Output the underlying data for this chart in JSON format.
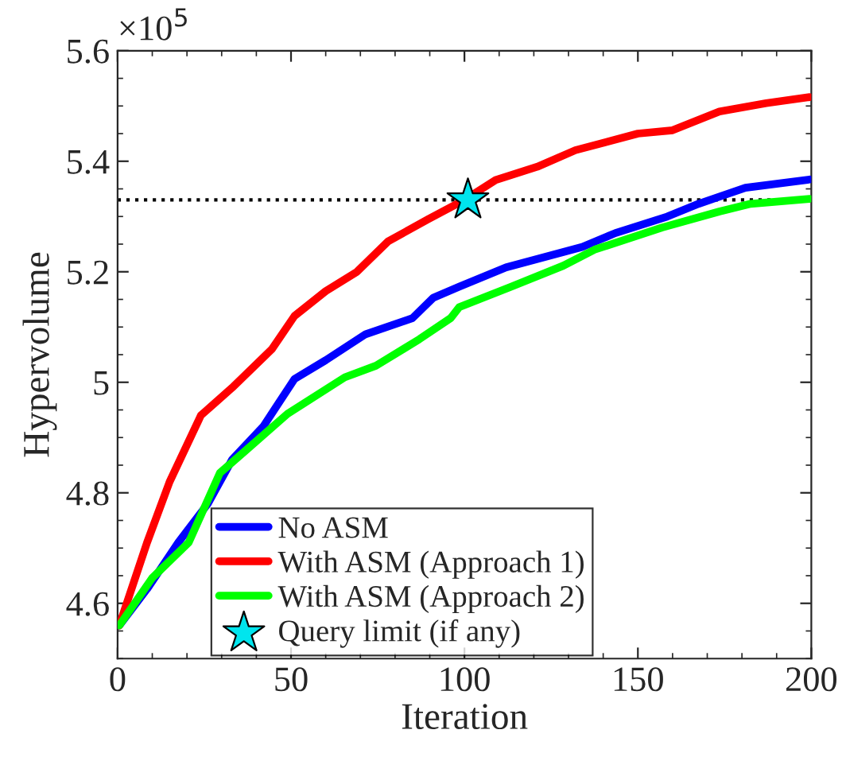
{
  "chart_data": {
    "type": "line",
    "xlabel": "Iteration",
    "ylabel": "Hypervolume",
    "annotations": [
      "×10$^{5}$"
    ],
    "xlim": [
      0,
      200
    ],
    "xticks": [
      0,
      50,
      100,
      150,
      200
    ],
    "ylim": [
      4.5,
      5.6
    ],
    "yticks": [
      4.6,
      4.8,
      5,
      5.2,
      5.4,
      5.6
    ],
    "grid": false,
    "legend": "bottom",
    "line_style": "solid",
    "ref_lines": [
      {
        "axis": "y",
        "value": 5.33,
        "color": "#000000",
        "line_style": "dotted"
      }
    ],
    "series": [
      {
        "name": "No ASM",
        "color": "#0000ff",
        "x": [
          0.5,
          8.5,
          17.5,
          26,
          33,
          42,
          51,
          60,
          71.5,
          85,
          91,
          98.5,
          112,
          134,
          143.5,
          158.5,
          167.5,
          181,
          199.5
        ],
        "values": [
          4.56,
          4.626,
          4.71,
          4.78,
          4.86,
          4.92,
          5.006,
          5.04,
          5.087,
          5.116,
          5.153,
          5.173,
          5.208,
          5.245,
          5.27,
          5.3,
          5.323,
          5.352,
          5.367
        ]
      },
      {
        "name": "With ASM (Approach 1)",
        "color": "#ff0000",
        "x": [
          0.5,
          8.5,
          15,
          24,
          33,
          44.5,
          51,
          60,
          69,
          78,
          89.5,
          100,
          109,
          121,
          132,
          150,
          160,
          173.5,
          187,
          199.5
        ],
        "values": [
          4.56,
          4.71,
          4.82,
          4.94,
          4.99,
          5.06,
          5.12,
          5.165,
          5.2,
          5.255,
          5.295,
          5.33,
          5.366,
          5.39,
          5.42,
          5.45,
          5.456,
          5.49,
          5.505,
          5.516
        ]
      },
      {
        "name": "With ASM (Approach 2)",
        "color": "#00ff00",
        "x": [
          0.5,
          10,
          20.5,
          29.5,
          37,
          49,
          65.5,
          74.5,
          87,
          96,
          98.5,
          113.5,
          128.5,
          137.5,
          157,
          173.5,
          182.5,
          199.5
        ],
        "values": [
          4.56,
          4.646,
          4.71,
          4.836,
          4.877,
          4.943,
          5.009,
          5.03,
          5.078,
          5.116,
          5.136,
          5.173,
          5.211,
          5.24,
          5.28,
          5.309,
          5.323,
          5.332
        ]
      },
      {
        "name": "Query limit (if any)",
        "type": "scatter",
        "marker": "star",
        "color": "#00e5ee",
        "x": [
          101
        ],
        "values": [
          5.33
        ]
      }
    ]
  }
}
